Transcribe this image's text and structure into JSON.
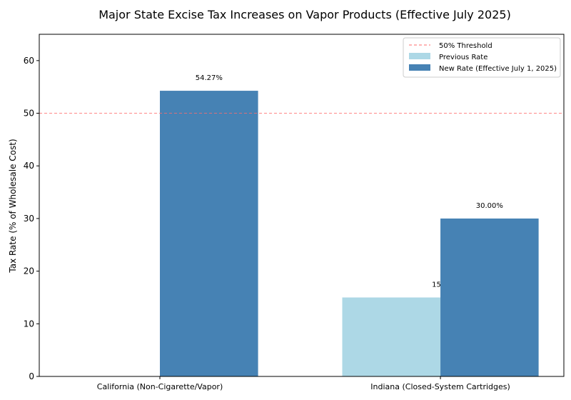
{
  "chart_data": {
    "type": "bar",
    "title": "Major State Excise Tax Increases on Vapor Products (Effective July 2025)",
    "xlabel": "",
    "ylabel": "Tax Rate (% of Wholesale Cost)",
    "categories": [
      "California (Non-Cigarette/Vapor)",
      "Indiana (Closed-System Cartridges)"
    ],
    "series": [
      {
        "name": "Previous Rate",
        "values": [
          0,
          15
        ],
        "labels": [
          "",
          "15%"
        ],
        "color": "#add8e6"
      },
      {
        "name": "New Rate (Effective July 1, 2025)",
        "values": [
          54.27,
          30.0
        ],
        "labels": [
          "54.27%",
          "30.00%"
        ],
        "color": "#4682b4"
      }
    ],
    "threshold": {
      "name": "50% Threshold",
      "value": 50,
      "color": "#ff6b6b",
      "style": "dashed"
    },
    "ylim": [
      0,
      65
    ],
    "yticks": [
      0,
      10,
      20,
      30,
      40,
      50,
      60
    ],
    "grid": false,
    "legend": "top-right"
  }
}
